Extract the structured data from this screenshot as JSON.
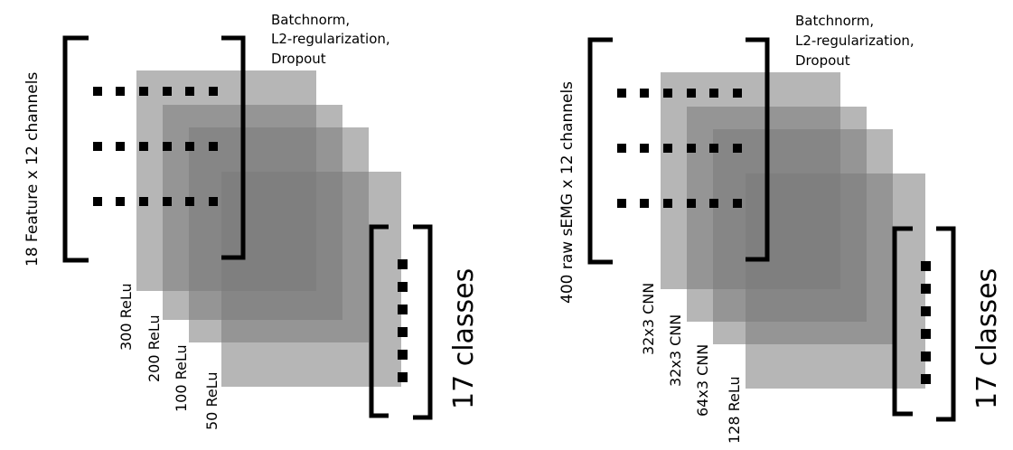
{
  "left": {
    "input_label": "18 Feature x 12 channels",
    "note_lines": [
      "Batchnorm,",
      "L2-regularization,",
      "Dropout"
    ],
    "layers": [
      "300 ReLu",
      "200 ReLu",
      "100 ReLu",
      "50 ReLu"
    ],
    "output_label": "17 classes"
  },
  "right": {
    "input_label": "400 raw sEMG x 12 channels",
    "note_lines": [
      "Batchnorm,",
      "L2-regularization,",
      "Dropout"
    ],
    "layers": [
      "32x3 CNN",
      "32x3 CNN",
      "64x3 CNN",
      "128 ReLu"
    ],
    "output_label": "17 classes"
  },
  "colors": {
    "layer_fill": "#7a7a7a",
    "ink": "#000000"
  }
}
